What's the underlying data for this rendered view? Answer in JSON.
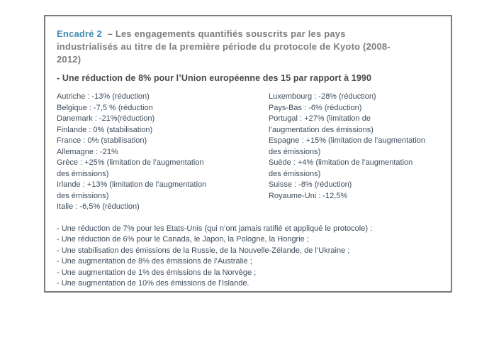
{
  "colors": {
    "accent_teal": "#3d8cb0",
    "title_gray": "#7d7d7d",
    "subtitle_gray": "#4a4a4a",
    "body_text": "#3d4c5c",
    "box_border": "#7a7a7a",
    "background": "#ffffff"
  },
  "encadre": {
    "label": "Encadré 2",
    "title": "  – Les engagements quantifiés souscrits par les pays\nindustrialisés au titre de la première période du protocole de Kyoto (2008-\n2012)",
    "subtitle": "- Une réduction de 8% pour l’Union européenne des 15 par rapport à 1990",
    "left_column": [
      "Autriche : -13% (réduction)",
      "Belgique : -7,5 % (réduction",
      "Danemark : -21%(réduction)",
      "Finlande : 0% (stabilisation)",
      "France : 0% (stabilisation)",
      "Allemagne : -21%",
      "Grèce : +25% (limitation de l’augmentation\ndes émissions)",
      "Irlande : +13% (limitation de l’augmentation\ndes émissions)",
      "Italie : -6,5% (réduction)"
    ],
    "right_column": [
      "Luxembourg : -28% (réduction)",
      "Pays-Bas : -6% (réduction)",
      "Portugal : +27% (limitation de\nl’augmentation des émissions)",
      "Espagne : +15% (limitation de l’augmentation\ndes émissions)",
      "Suède : +4% (limitation de l’augmentation\ndes émissions)",
      "Suisse : -8% (réduction)",
      "Royaume-Uni : -12,5%"
    ],
    "bottom_list": [
      "- Une réduction de 7% pour les Etats-Unis (qui n’ont jamais ratifié et appliqué le protocole) :",
      "- Une réduction de 6% pour le Canada, le Japon, la Pologne, la Hongrie ;",
      "- Une stabilisation des émissions de la Russie, de la Nouvelle-Zélande, de l’Ukraine ;",
      "- Une augmentation de 8% des émissions de l’Australie ;",
      "- Une augmentation de 1% des émissions de la Norvège ;",
      "- Une augmentation de 10% des émissions de l’Islande."
    ]
  }
}
